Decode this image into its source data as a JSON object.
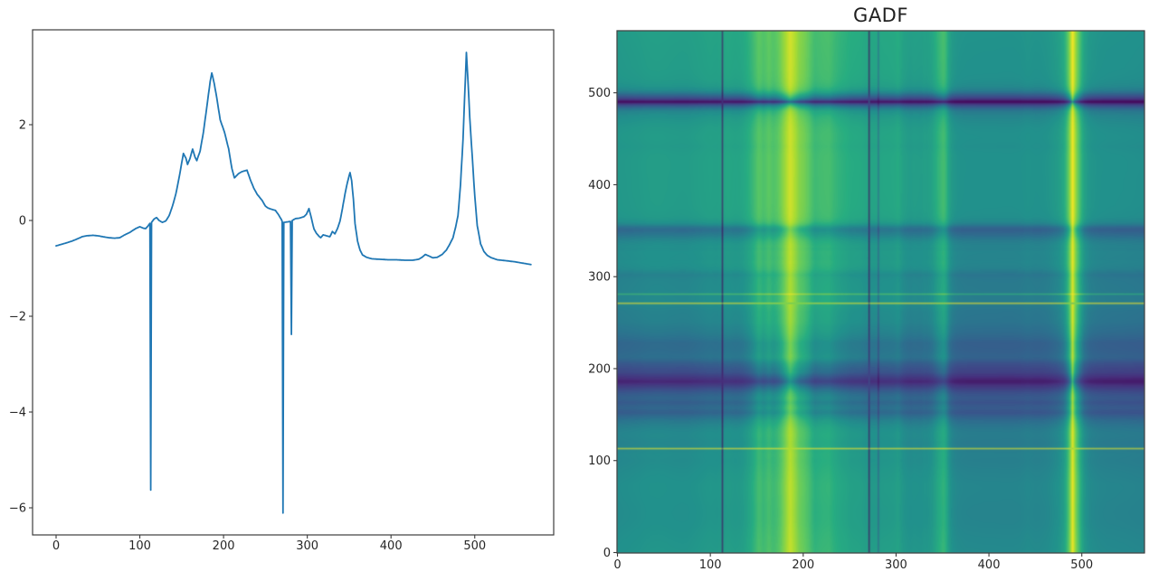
{
  "figure": {
    "background": "#ffffff",
    "text_color": "#262626",
    "spine_color": "#3c3c3c"
  },
  "chart_data": [
    {
      "type": "line",
      "title": "",
      "xlabel": "",
      "ylabel": "",
      "line_color": "#1f77b4",
      "x_ticks": [
        0,
        100,
        200,
        300,
        400,
        500
      ],
      "y_ticks": [
        2,
        0,
        -2,
        -4,
        -6
      ],
      "xlim": [
        -28.1,
        594.3
      ],
      "ylim": [
        -6.58,
        3.99
      ],
      "grid": false,
      "legend": null,
      "n_points": 568,
      "interpolation": "linear",
      "keypoints": [
        [
          0,
          -0.53
        ],
        [
          6,
          -0.5
        ],
        [
          12,
          -0.47
        ],
        [
          19,
          -0.43
        ],
        [
          26,
          -0.38
        ],
        [
          31,
          -0.34
        ],
        [
          36,
          -0.32
        ],
        [
          44,
          -0.31
        ],
        [
          50,
          -0.32
        ],
        [
          56,
          -0.34
        ],
        [
          63,
          -0.36
        ],
        [
          70,
          -0.37
        ],
        [
          76,
          -0.36
        ],
        [
          82,
          -0.3
        ],
        [
          88,
          -0.25
        ],
        [
          95,
          -0.17
        ],
        [
          100,
          -0.13
        ],
        [
          104,
          -0.16
        ],
        [
          107,
          -0.17
        ],
        [
          110,
          -0.11
        ],
        [
          112,
          -0.06
        ],
        [
          113,
          -5.63
        ],
        [
          114,
          -0.04
        ],
        [
          117,
          0.03
        ],
        [
          120,
          0.06
        ],
        [
          123,
          0.0
        ],
        [
          127,
          -0.04
        ],
        [
          131,
          -0.01
        ],
        [
          135,
          0.1
        ],
        [
          139,
          0.3
        ],
        [
          143,
          0.55
        ],
        [
          147,
          0.9
        ],
        [
          152,
          1.4
        ],
        [
          155,
          1.3
        ],
        [
          157,
          1.17
        ],
        [
          160,
          1.3
        ],
        [
          163,
          1.49
        ],
        [
          166,
          1.32
        ],
        [
          168,
          1.25
        ],
        [
          172,
          1.45
        ],
        [
          176,
          1.85
        ],
        [
          181,
          2.5
        ],
        [
          184,
          2.9
        ],
        [
          186,
          3.08
        ],
        [
          189,
          2.85
        ],
        [
          192,
          2.55
        ],
        [
          196,
          2.1
        ],
        [
          201,
          1.85
        ],
        [
          206,
          1.5
        ],
        [
          210,
          1.08
        ],
        [
          213,
          0.89
        ],
        [
          218,
          0.98
        ],
        [
          222,
          1.02
        ],
        [
          228,
          1.05
        ],
        [
          232,
          0.85
        ],
        [
          236,
          0.68
        ],
        [
          240,
          0.55
        ],
        [
          246,
          0.42
        ],
        [
          250,
          0.3
        ],
        [
          253,
          0.26
        ],
        [
          258,
          0.23
        ],
        [
          262,
          0.21
        ],
        [
          266,
          0.11
        ],
        [
          269,
          0.02
        ],
        [
          270,
          -0.02
        ],
        [
          271,
          -6.11
        ],
        [
          272,
          -0.04
        ],
        [
          276,
          -0.03
        ],
        [
          280,
          -0.02
        ],
        [
          281,
          -2.38
        ],
        [
          282,
          0.0
        ],
        [
          286,
          0.04
        ],
        [
          291,
          0.05
        ],
        [
          296,
          0.08
        ],
        [
          299,
          0.13
        ],
        [
          302,
          0.25
        ],
        [
          305,
          0.04
        ],
        [
          308,
          -0.18
        ],
        [
          311,
          -0.27
        ],
        [
          314,
          -0.33
        ],
        [
          316,
          -0.36
        ],
        [
          319,
          -0.3
        ],
        [
          323,
          -0.32
        ],
        [
          327,
          -0.34
        ],
        [
          330,
          -0.23
        ],
        [
          333,
          -0.28
        ],
        [
          336,
          -0.17
        ],
        [
          339,
          -0.02
        ],
        [
          342,
          0.25
        ],
        [
          345,
          0.55
        ],
        [
          348,
          0.8
        ],
        [
          351,
          1.0
        ],
        [
          353,
          0.83
        ],
        [
          355,
          0.45
        ],
        [
          357,
          -0.06
        ],
        [
          360,
          -0.43
        ],
        [
          363,
          -0.62
        ],
        [
          366,
          -0.72
        ],
        [
          371,
          -0.77
        ],
        [
          377,
          -0.8
        ],
        [
          386,
          -0.81
        ],
        [
          396,
          -0.82
        ],
        [
          406,
          -0.82
        ],
        [
          416,
          -0.83
        ],
        [
          426,
          -0.83
        ],
        [
          433,
          -0.81
        ],
        [
          437,
          -0.77
        ],
        [
          441,
          -0.71
        ],
        [
          445,
          -0.74
        ],
        [
          450,
          -0.78
        ],
        [
          455,
          -0.77
        ],
        [
          461,
          -0.71
        ],
        [
          466,
          -0.62
        ],
        [
          470,
          -0.5
        ],
        [
          474,
          -0.36
        ],
        [
          477,
          -0.15
        ],
        [
          480,
          0.1
        ],
        [
          483,
          0.75
        ],
        [
          486,
          1.7
        ],
        [
          488,
          2.6
        ],
        [
          490,
          3.51
        ],
        [
          492,
          2.9
        ],
        [
          494,
          2.16
        ],
        [
          497,
          1.34
        ],
        [
          500,
          0.51
        ],
        [
          503,
          -0.11
        ],
        [
          507,
          -0.49
        ],
        [
          511,
          -0.65
        ],
        [
          515,
          -0.73
        ],
        [
          520,
          -0.78
        ],
        [
          527,
          -0.82
        ],
        [
          537,
          -0.84
        ],
        [
          547,
          -0.86
        ],
        [
          557,
          -0.89
        ],
        [
          567,
          -0.92
        ]
      ]
    },
    {
      "type": "heatmap",
      "title": "GADF",
      "x_ticks": [
        0,
        100,
        200,
        300,
        400,
        500
      ],
      "y_ticks": [
        0,
        100,
        200,
        300,
        400,
        500
      ],
      "origin": "lower",
      "extent": [
        -0.5,
        567.5,
        -0.5,
        567.5
      ],
      "colormap": "viridis",
      "vmin": -1,
      "vmax": 1,
      "source_series": 0,
      "transform": "GADF[i][j] = sin(phi_i - phi_j), phi = arccos(min-max scaled series of chart 0 to [-1,1])",
      "viridis_anchors": [
        "#440154",
        "#46327e",
        "#3b528b",
        "#2c728e",
        "#21918c",
        "#27ad81",
        "#5ec962",
        "#aadc32",
        "#fde725"
      ]
    }
  ]
}
